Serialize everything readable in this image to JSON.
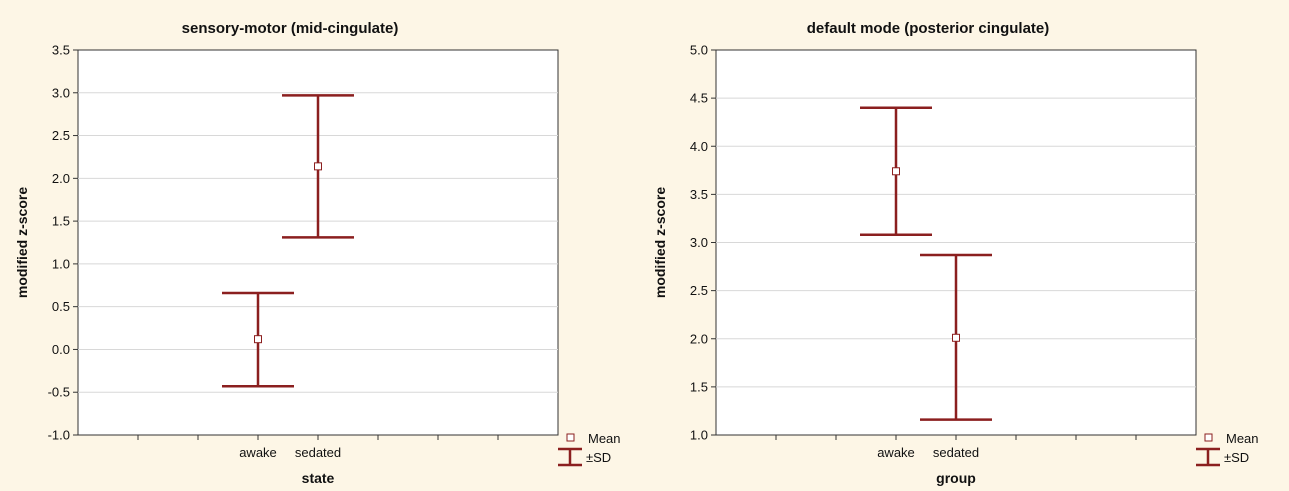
{
  "chart_data": [
    {
      "type": "errorbar",
      "title": "sensory-motor (mid-cingulate)",
      "xlabel": "state",
      "ylabel": "modified z-score",
      "categories": [
        "awake",
        "sedated"
      ],
      "mean": [
        0.12,
        2.14
      ],
      "sd_low": [
        -0.43,
        1.31
      ],
      "sd_high": [
        0.66,
        2.97
      ],
      "ylim": [
        -1.0,
        3.5
      ],
      "yticks": [
        "-1.0",
        "-0.5",
        "0.0",
        "0.5",
        "1.0",
        "1.5",
        "2.0",
        "2.5",
        "3.0",
        "3.5"
      ],
      "grid": true,
      "legend": {
        "position": "bottom-right",
        "mean_label": "Mean",
        "sd_label": "±SD"
      }
    },
    {
      "type": "errorbar",
      "title": "default mode (posterior cingulate)",
      "xlabel": "group",
      "ylabel": "modified z-score",
      "categories": [
        "awake",
        "sedated"
      ],
      "mean": [
        3.74,
        2.01
      ],
      "sd_low": [
        3.08,
        1.16
      ],
      "sd_high": [
        4.4,
        2.87
      ],
      "ylim": [
        1.0,
        5.0
      ],
      "yticks": [
        "1.0",
        "1.5",
        "2.0",
        "2.5",
        "3.0",
        "3.5",
        "4.0",
        "4.5",
        "5.0"
      ],
      "grid": true,
      "legend": {
        "position": "bottom-right",
        "mean_label": "Mean",
        "sd_label": "±SD"
      }
    }
  ],
  "colors": {
    "background": "#fdf6e6",
    "plot_area": "#ffffff",
    "bar": "#8b1f1f",
    "grid": "#d8d8d8",
    "axis": "#333333"
  }
}
